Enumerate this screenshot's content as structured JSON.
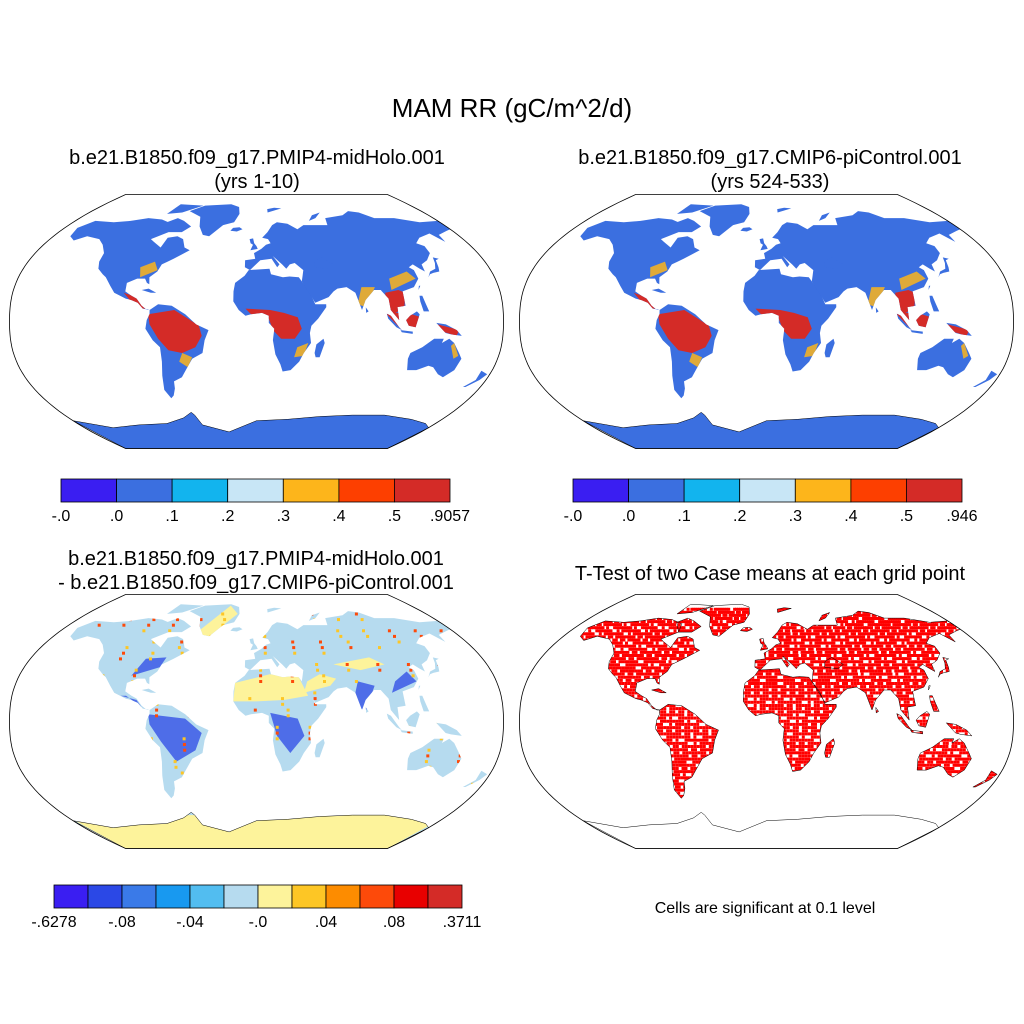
{
  "main_title": "MAM RR (gC/m^2/d)",
  "panels": [
    {
      "id": "midholo",
      "title_line1": "b.e21.B1850.f09_g17.PMIP4-midHolo.001",
      "title_line2": "(yrs 1-10)",
      "colorbar": {
        "colors": [
          "#3a1ef2",
          "#3b6fe0",
          "#12b4ee",
          "#c8e6f6",
          "#fdb51b",
          "#fd3f00",
          "#d42b27"
        ],
        "labels": [
          "-.0",
          ".0",
          ".1",
          ".2",
          ".3",
          ".4",
          ".5",
          ".9057"
        ]
      }
    },
    {
      "id": "picontrol",
      "title_line1": "b.e21.B1850.f09_g17.CMIP6-piControl.001",
      "title_line2": "(yrs 524-533)",
      "colorbar": {
        "colors": [
          "#3a1ef2",
          "#3b6fe0",
          "#12b4ee",
          "#c8e6f6",
          "#fdb51b",
          "#fd3f00",
          "#d42b27"
        ],
        "labels": [
          "-.0",
          ".0",
          ".1",
          ".2",
          ".3",
          ".4",
          ".5",
          ".946"
        ]
      }
    },
    {
      "id": "difference",
      "title_line1": "b.e21.B1850.f09_g17.PMIP4-midHolo.001",
      "title_line2": "- b.e21.B1850.f09_g17.CMIP6-piControl.001",
      "colorbar": {
        "colors": [
          "#3a1ef2",
          "#2b48e6",
          "#3a7ae8",
          "#1899f0",
          "#52bdf0",
          "#b6dbef",
          "#fdf39b",
          "#fdc625",
          "#fd8c00",
          "#fd4a0a",
          "#e80000",
          "#d42b27"
        ],
        "labels": [
          "-.6278",
          "-.08",
          "-.04",
          "-.0",
          ".04",
          ".08",
          ".3711"
        ]
      }
    },
    {
      "id": "ttest",
      "title_line1": "T-Test of two Case means at each grid point",
      "note": "Cells are significant at 0.1 level"
    }
  ],
  "map_colors": {
    "ocean": "#ffffff",
    "outline": "#000000",
    "base_land": "#3b6fe0",
    "wet_land": "#d42b27",
    "mid_land": "#fdb51b",
    "diff_land": "#b6dbef",
    "diff_dry": "#fdf39b",
    "diff_neg": "#2b48e6",
    "signif": "#ff0000"
  }
}
